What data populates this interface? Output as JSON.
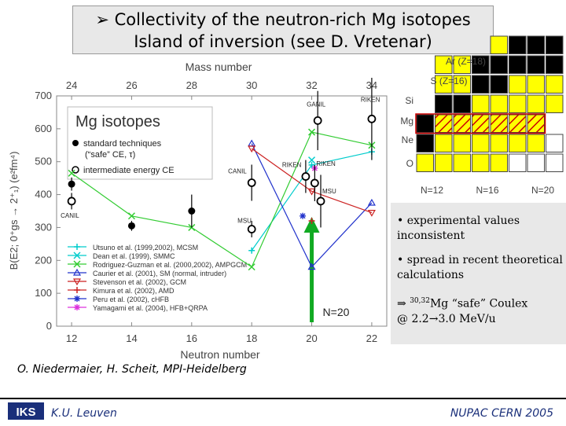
{
  "slide": {
    "title_line1": "Collectivity of the neutron-rich Mg isotopes",
    "title_line2": "Island of inversion (see D. Vretenar)",
    "bullet_glyph": "➢",
    "credits": "O. Niedermaier, H. Scheit, MPI-Heidelberg",
    "footer_left": "K.U. Leuven",
    "footer_right": "NUPAC CERN 2005",
    "logo_name": "iks-logo"
  },
  "notes": {
    "n1": "• experimental values inconsistent",
    "n2": "• spread in recent theoretical calculations",
    "n3_arrow": "⇒",
    "n3_sup": "30,32",
    "n3_text": "Mg “safe” Coulex",
    "n3_line2": "@ 2.2→3.0 MeV/u"
  },
  "nuclide_chart": {
    "row_labels": [
      "Ar (Z=18)",
      "S (Z=16)",
      "Si",
      "Mg",
      "Ne",
      "O"
    ],
    "col_labels": [
      "N=12",
      "N=16",
      "N=20"
    ],
    "colors": {
      "stable": "#000000",
      "known": "#ffff00",
      "unknown": "#ffffff",
      "hatch": "#cc0000"
    }
  },
  "chart_data": {
    "type": "scatter",
    "title": "Mg isotopes",
    "xlabel": "Neutron number",
    "top_xlabel": "Mass number",
    "ylabel": "B(E2; 0⁺gs → 2⁺₁) (e²fm⁴)",
    "xlim": [
      11.5,
      22.5
    ],
    "ylim": [
      0,
      700
    ],
    "x_ticks": [
      12,
      14,
      16,
      18,
      20,
      22
    ],
    "top_ticks": [
      24,
      26,
      28,
      30,
      32,
      34
    ],
    "y_ticks": [
      0,
      100,
      200,
      300,
      400,
      500,
      600,
      700
    ],
    "grid": false,
    "legend_exp": [
      {
        "marker": "filled-circle",
        "text": "standard techniques",
        "text2": "(“safe” CE, τ)"
      },
      {
        "marker": "open-circle",
        "text": "intermediate energy CE",
        "text2": ""
      }
    ],
    "experimental": {
      "standard": [
        {
          "x": 12,
          "y": 432,
          "err": 20
        },
        {
          "x": 14,
          "y": 305,
          "err": 15
        },
        {
          "x": 16,
          "y": 350,
          "err": 50
        }
      ],
      "intermediate": [
        {
          "x": 12,
          "y": 380,
          "err": 25,
          "label": "CANIL"
        },
        {
          "x": 18,
          "y": 295,
          "err": 25,
          "label": "MSU"
        },
        {
          "x": 18,
          "y": 436,
          "err": 55,
          "label": "CANIL"
        },
        {
          "x": 19.8,
          "y": 455,
          "err": 50,
          "label": "RIKEN"
        },
        {
          "x": 20.1,
          "y": 435,
          "err": 55,
          "label": "RIKEN"
        },
        {
          "x": 20.3,
          "y": 380,
          "err": 80,
          "label": "MSU"
        },
        {
          "x": 20.2,
          "y": 625,
          "err": 90,
          "label": "GANIL"
        },
        {
          "x": 22,
          "y": 630,
          "err": 125,
          "label": "RIKEN"
        }
      ]
    },
    "series": [
      {
        "name": "Utsuno et al. (1999,2002), MCSM",
        "color": "#00cccc",
        "marker": "plus",
        "x": [
          18,
          20,
          22
        ],
        "y": [
          230,
          490,
          530
        ]
      },
      {
        "name": "Dean et al. (1999), SMMC",
        "color": "#00cccc",
        "marker": "x",
        "x": [
          20
        ],
        "y": [
          505
        ]
      },
      {
        "name": "Rodriguez-Guzman et al. (2000,2002), AMPGCM",
        "color": "#33cc33",
        "marker": "x",
        "x": [
          12,
          14,
          16,
          18,
          20,
          22
        ],
        "y": [
          465,
          335,
          300,
          180,
          590,
          550
        ]
      },
      {
        "name": "Caurier et al. (2001), SM (normal, intruder)",
        "color": "#2233cc",
        "marker": "triangle",
        "x": [
          18,
          20,
          22
        ],
        "y": [
          555,
          180,
          375
        ]
      },
      {
        "name": "Stevenson et al. (2002), GCM",
        "color": "#cc2222",
        "marker": "triangle-down",
        "x": [
          18,
          20,
          22
        ],
        "y": [
          540,
          410,
          345
        ]
      },
      {
        "name": "Kimura et al. (2002), AMD",
        "color": "#cc2222",
        "marker": "plus",
        "x": [
          20
        ],
        "y": [
          320
        ]
      },
      {
        "name": "Peru et al. (2002), cHFB",
        "color": "#2233cc",
        "marker": "star",
        "x": [
          19.7
        ],
        "y": [
          335
        ]
      },
      {
        "name": "Yamagami et al. (2004), HFB+QRPA",
        "color": "#dd33dd",
        "marker": "star",
        "x": [
          20.1
        ],
        "y": [
          480
        ]
      }
    ],
    "annotation": {
      "text": "N=20",
      "x": 20
    }
  }
}
